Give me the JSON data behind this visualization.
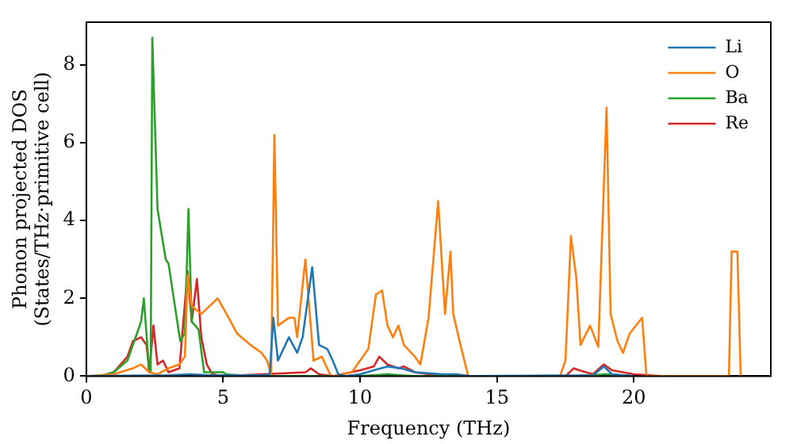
{
  "chart_data": {
    "type": "line",
    "xlabel": "Frequency (THz)",
    "ylabel": "Phonon projected DOS\n(States/THz·primitive cell)",
    "xlim": [
      0,
      25
    ],
    "ylim": [
      0,
      9.1
    ],
    "xticks": [
      0,
      5,
      10,
      15,
      20
    ],
    "yticks": [
      0,
      2,
      4,
      6,
      8
    ],
    "grid": false,
    "legend": "top right",
    "marker": "none",
    "line_style": "solid",
    "series": [
      {
        "name": "Li",
        "color": "#1f77b4",
        "x": [
          0,
          3,
          3.8,
          4.5,
          6.5,
          6.7,
          6.83,
          7.0,
          7.4,
          7.7,
          7.9,
          8.25,
          8.5,
          8.8,
          9.0,
          9.2,
          9.5,
          10,
          10.5,
          11,
          11.5,
          12,
          13,
          13.5,
          14,
          18.5,
          18.9,
          19.2,
          20
        ],
        "values": [
          0,
          0.02,
          0.05,
          0.02,
          0.02,
          0.05,
          1.5,
          0.4,
          1.0,
          0.6,
          1.0,
          2.8,
          0.8,
          0.7,
          0.4,
          0.05,
          0,
          0.05,
          0.15,
          0.25,
          0.2,
          0.1,
          0.05,
          0.05,
          0,
          0.02,
          0.25,
          0.05,
          0
        ]
      },
      {
        "name": "O",
        "color": "#ff7f0e",
        "x": [
          0,
          1,
          1.7,
          2.0,
          2.3,
          2.6,
          3.0,
          3.4,
          3.6,
          3.7,
          3.85,
          4.2,
          4.5,
          4.8,
          5.2,
          5.5,
          6,
          6.4,
          6.6,
          6.75,
          6.87,
          7.0,
          7.4,
          7.6,
          7.7,
          8.0,
          8.3,
          8.6,
          8.9,
          9.0,
          9.7,
          10,
          10.3,
          10.58,
          10.8,
          11.0,
          11.2,
          11.4,
          11.6,
          12,
          12.2,
          12.5,
          12.85,
          13.1,
          13.3,
          13.4,
          13.7,
          13.95,
          17.3,
          17.5,
          17.7,
          17.9,
          18.05,
          18.4,
          18.7,
          19.0,
          19.15,
          19.4,
          19.6,
          19.85,
          20.3,
          20.46,
          23.47,
          23.57,
          23.78,
          23.9
        ],
        "values": [
          0,
          0.05,
          0.2,
          0.3,
          0.1,
          0.05,
          0.2,
          0.3,
          0.5,
          2.6,
          1.8,
          1.6,
          1.8,
          2.0,
          1.5,
          1.1,
          0.8,
          0.6,
          0.4,
          0.05,
          6.2,
          1.3,
          1.5,
          1.5,
          1.0,
          3.0,
          0.4,
          0.5,
          0.05,
          0,
          0.1,
          0.4,
          0.7,
          2.1,
          2.2,
          1.3,
          1.0,
          1.3,
          0.8,
          0.5,
          0.3,
          1.5,
          4.5,
          1.6,
          3.2,
          1.6,
          0.7,
          0,
          0,
          0.4,
          3.6,
          2.5,
          0.8,
          1.3,
          0.75,
          6.9,
          1.6,
          0.9,
          0.6,
          1.1,
          1.5,
          0,
          0,
          3.2,
          3.2,
          0
        ]
      },
      {
        "name": "Ba",
        "color": "#2ca02c",
        "x": [
          0,
          0.5,
          1,
          1.5,
          2.0,
          2.1,
          2.3,
          2.35,
          2.41,
          2.6,
          2.9,
          3.0,
          3.3,
          3.43,
          3.6,
          3.73,
          3.85,
          4.1,
          4.3,
          4.6,
          5.0,
          5.1,
          6,
          10,
          11,
          12,
          18,
          19,
          20
        ],
        "values": [
          0,
          0,
          0.1,
          0.4,
          1.4,
          2.0,
          0.1,
          0.1,
          8.7,
          4.3,
          3.0,
          2.9,
          1.5,
          0.9,
          1.1,
          4.3,
          1.4,
          1.2,
          0.1,
          0.1,
          0.1,
          0.05,
          0,
          0,
          0.05,
          0,
          0,
          0.05,
          0
        ]
      },
      {
        "name": "Re",
        "color": "#d62728",
        "x": [
          0,
          0.5,
          1,
          1.5,
          1.7,
          2.0,
          2.2,
          2.3,
          2.45,
          2.6,
          2.8,
          3.0,
          3.4,
          3.7,
          3.85,
          4.04,
          4.2,
          4.4,
          4.6,
          5,
          8,
          8.2,
          8.5,
          9,
          10,
          10.5,
          10.7,
          11,
          11.4,
          11.6,
          12,
          12.5,
          13,
          14,
          17.5,
          17.8,
          18,
          18.5,
          18.9,
          19.2,
          20,
          21
        ],
        "values": [
          0,
          0,
          0.1,
          0.5,
          0.9,
          1.0,
          0.8,
          0.1,
          1.3,
          0.3,
          0.4,
          0.1,
          0.2,
          2.7,
          1.4,
          2.5,
          1.0,
          0.3,
          0.05,
          0,
          0.1,
          0.2,
          0.05,
          0,
          0.15,
          0.25,
          0.5,
          0.3,
          0.2,
          0.25,
          0.1,
          0.05,
          0.03,
          0,
          0,
          0.2,
          0.15,
          0.05,
          0.3,
          0.15,
          0.05,
          0
        ]
      }
    ]
  }
}
